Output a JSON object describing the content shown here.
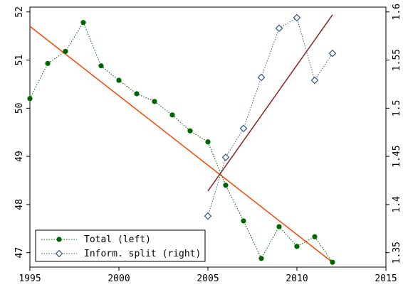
{
  "chart_data": {
    "type": "line",
    "title": "",
    "xlabel": "",
    "ylabel_left": "",
    "ylabel_right": "",
    "grid": false,
    "legend_position": "bottom-left",
    "xlim": [
      1995,
      2015
    ],
    "ylim_left": [
      46.7,
      52.1
    ],
    "ylim_right": [
      1.335,
      1.605
    ],
    "x_ticks": [
      1995,
      2000,
      2005,
      2010,
      2015
    ],
    "y_left_ticks": [
      47,
      48,
      49,
      50,
      51,
      52
    ],
    "y_right_ticks": [
      1.35,
      1.4,
      1.45,
      1.5,
      1.55,
      1.6
    ],
    "series": [
      {
        "name": "Total (left)",
        "axis": "left",
        "marker": "filled-circle",
        "color": "#006400",
        "x": [
          1995,
          1996,
          1997,
          1998,
          1999,
          2000,
          2001,
          2002,
          2003,
          2004,
          2005,
          2006,
          2007,
          2008,
          2009,
          2010,
          2011,
          2012
        ],
        "values": [
          50.2,
          50.93,
          51.18,
          51.78,
          50.88,
          50.58,
          50.3,
          50.14,
          49.86,
          49.53,
          49.3,
          48.4,
          47.66,
          46.88,
          47.54,
          47.13,
          47.33,
          46.8
        ]
      },
      {
        "name": "Inform. split (right)",
        "axis": "right",
        "marker": "hollow-diamond",
        "color": "#3b5f8a",
        "x": [
          2005,
          2006,
          2007,
          2008,
          2009,
          2010,
          2011,
          2012
        ],
        "values": [
          1.388,
          1.449,
          1.479,
          1.532,
          1.583,
          1.594,
          1.529,
          1.557
        ]
      }
    ],
    "trend_lines": [
      {
        "axis": "left",
        "color": "#ff4500",
        "x": [
          1995,
          2012
        ],
        "values": [
          51.7,
          46.8
        ]
      },
      {
        "axis": "right",
        "color": "#8b2323",
        "x": [
          2005,
          2012
        ],
        "values": [
          1.414,
          1.597
        ]
      }
    ]
  }
}
